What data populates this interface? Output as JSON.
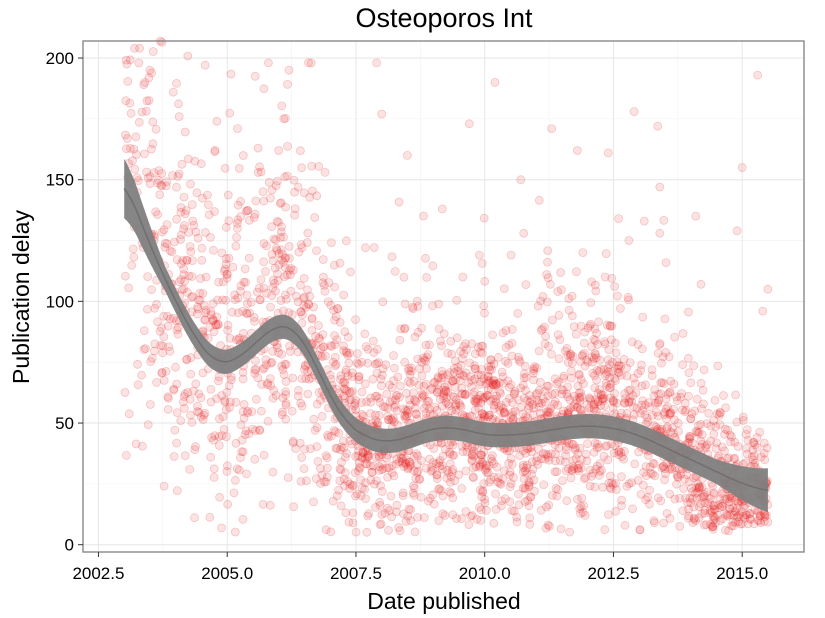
{
  "chart_data": {
    "type": "scatter",
    "title": "Osteoporos Int",
    "xlabel": "Date published",
    "ylabel": "Publication delay",
    "xlim": [
      2002.2,
      2016.2
    ],
    "ylim": [
      -3,
      207
    ],
    "x_ticks": [
      2002.5,
      2005.0,
      2007.5,
      2010.0,
      2012.5,
      2015.0
    ],
    "x_tick_labels": [
      "2002.5",
      "2005.0",
      "2007.5",
      "2010.0",
      "2012.5",
      "2015.0"
    ],
    "y_ticks": [
      0,
      50,
      100,
      150,
      200
    ],
    "y_tick_labels": [
      "0",
      "50",
      "100",
      "150",
      "200"
    ],
    "grid": true,
    "point_color": "#e31a1c",
    "point_opacity": 0.12,
    "smooth_color": "#808080",
    "smooth_band_halfwidth": 5,
    "points_note": "approx. 3000 semi-transparent points; density sampled around trend",
    "scatter_seed": 7,
    "scatter_count": 2800,
    "outliers": [
      [
        2003.2,
        204
      ],
      [
        2003.3,
        204
      ],
      [
        2003.7,
        207
      ],
      [
        2003.5,
        195
      ],
      [
        2003.4,
        190
      ],
      [
        2005.8,
        198
      ],
      [
        2006.2,
        195
      ],
      [
        2006.1,
        175
      ],
      [
        2006.0,
        162
      ],
      [
        2004.8,
        174
      ],
      [
        2005.2,
        171
      ],
      [
        2007.9,
        198
      ],
      [
        2008.5,
        160
      ],
      [
        2008.0,
        177
      ],
      [
        2010.2,
        190
      ],
      [
        2010.7,
        150
      ],
      [
        2011.3,
        171
      ],
      [
        2011.8,
        162
      ],
      [
        2012.4,
        161
      ],
      [
        2012.9,
        178
      ],
      [
        2013.1,
        133
      ],
      [
        2013.4,
        147
      ],
      [
        2014.1,
        135
      ],
      [
        2014.9,
        129
      ],
      [
        2015.0,
        155
      ],
      [
        2015.3,
        193
      ],
      [
        2015.5,
        105
      ],
      [
        2015.4,
        96
      ],
      [
        2012.8,
        125
      ],
      [
        2012.6,
        134
      ],
      [
        2014.2,
        107
      ],
      [
        2013.4,
        128
      ],
      [
        2009.7,
        173
      ],
      [
        2006.9,
        153
      ],
      [
        2005.6,
        163
      ]
    ],
    "smooth_line": {
      "x": [
        2003.0,
        2003.3,
        2003.6,
        2004.0,
        2004.4,
        2004.8,
        2005.2,
        2005.6,
        2006.0,
        2006.3,
        2006.6,
        2006.9,
        2007.3,
        2007.7,
        2008.1,
        2008.5,
        2009.0,
        2009.5,
        2010.0,
        2010.5,
        2011.0,
        2011.5,
        2012.0,
        2012.5,
        2013.0,
        2013.5,
        2014.0,
        2014.5,
        2015.0,
        2015.5
      ],
      "y": [
        150,
        134,
        118,
        100,
        84,
        74,
        76,
        84,
        91,
        89,
        80,
        65,
        50,
        44,
        42,
        44,
        48,
        48,
        45,
        45,
        46,
        48,
        49,
        48,
        45,
        40,
        35,
        30,
        25,
        22
      ]
    }
  }
}
